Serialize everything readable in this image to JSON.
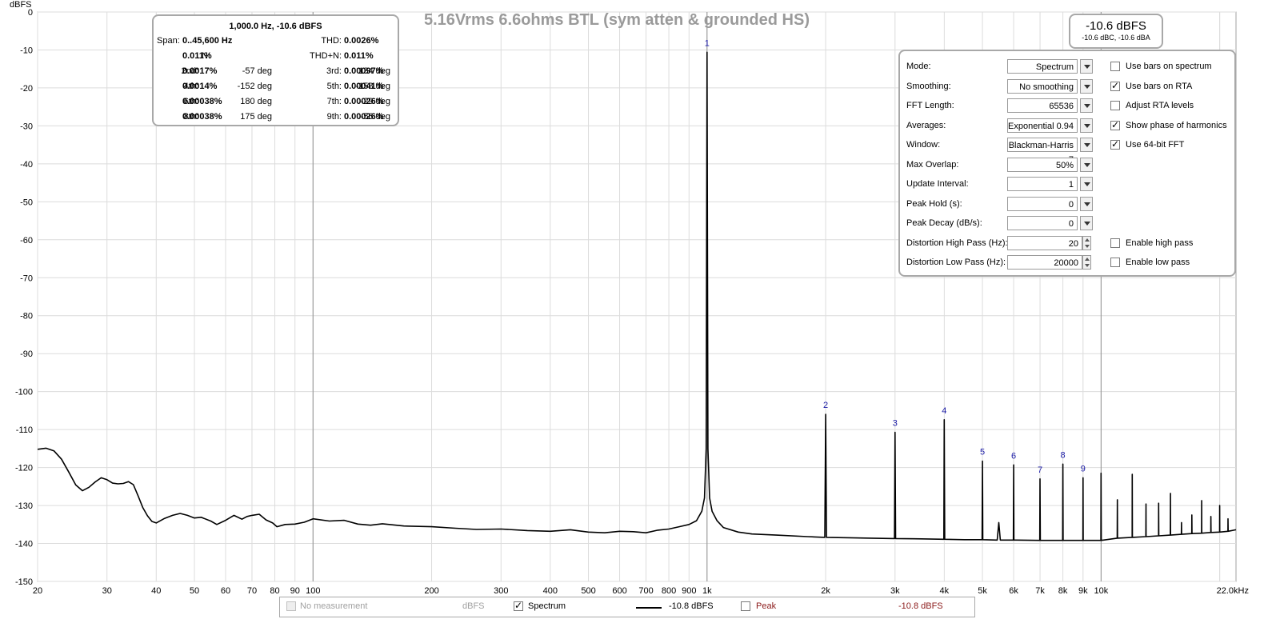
{
  "chart_data": {
    "type": "line",
    "title": "5.16Vrms 6.6ohms BTL (sym atten & grounded HS)",
    "xlabel": "",
    "ylabel": "dBFS",
    "x_scale": "log",
    "xlim": [
      20,
      22000
    ],
    "ylim": [
      -150,
      0
    ],
    "grid": true,
    "y_ticks": [
      0,
      -10,
      -20,
      -30,
      -40,
      -50,
      -60,
      -70,
      -80,
      -90,
      -100,
      -110,
      -120,
      -130,
      -140,
      -150
    ],
    "x_ticks": [
      {
        "v": 20,
        "l": "20"
      },
      {
        "v": 30,
        "l": "30"
      },
      {
        "v": 40,
        "l": "40"
      },
      {
        "v": 50,
        "l": "50"
      },
      {
        "v": 60,
        "l": "60"
      },
      {
        "v": 70,
        "l": "70"
      },
      {
        "v": 80,
        "l": "80"
      },
      {
        "v": 90,
        "l": "90"
      },
      {
        "v": 100,
        "l": "100"
      },
      {
        "v": 200,
        "l": "200"
      },
      {
        "v": 300,
        "l": "300"
      },
      {
        "v": 400,
        "l": "400"
      },
      {
        "v": 500,
        "l": "500"
      },
      {
        "v": 600,
        "l": "600"
      },
      {
        "v": 700,
        "l": "700"
      },
      {
        "v": 800,
        "l": "800"
      },
      {
        "v": 900,
        "l": "900"
      },
      {
        "v": 1000,
        "l": "1k"
      },
      {
        "v": 2000,
        "l": "2k"
      },
      {
        "v": 3000,
        "l": "3k"
      },
      {
        "v": 4000,
        "l": "4k"
      },
      {
        "v": 5000,
        "l": "5k"
      },
      {
        "v": 6000,
        "l": "6k"
      },
      {
        "v": 7000,
        "l": "7k"
      },
      {
        "v": 8000,
        "l": "8k"
      },
      {
        "v": 9000,
        "l": "9k"
      },
      {
        "v": 10000,
        "l": "10k"
      },
      {
        "v": 22000,
        "l": "22.0kHz"
      }
    ],
    "series": [
      {
        "color": "#000000",
        "points": [
          [
            20,
            -115.2
          ],
          [
            21,
            -114.9
          ],
          [
            22,
            -115.6
          ],
          [
            23,
            -117.8
          ],
          [
            24,
            -121.2
          ],
          [
            25,
            -124.6
          ],
          [
            26,
            -126.1
          ],
          [
            27,
            -125.2
          ],
          [
            28,
            -123.8
          ],
          [
            29,
            -122.7
          ],
          [
            30,
            -123.2
          ],
          [
            31,
            -124.1
          ],
          [
            32,
            -124.3
          ],
          [
            33,
            -124.2
          ],
          [
            34,
            -123.7
          ],
          [
            35,
            -124.5
          ],
          [
            36,
            -127.5
          ],
          [
            37,
            -130.6
          ],
          [
            38,
            -132.7
          ],
          [
            39,
            -134.2
          ],
          [
            40,
            -134.6
          ],
          [
            42,
            -133.4
          ],
          [
            44,
            -132.6
          ],
          [
            46,
            -132.1
          ],
          [
            48,
            -132.6
          ],
          [
            50,
            -133.3
          ],
          [
            52,
            -133.1
          ],
          [
            55,
            -134.1
          ],
          [
            57,
            -135.0
          ],
          [
            60,
            -133.9
          ],
          [
            63,
            -132.6
          ],
          [
            66,
            -133.6
          ],
          [
            68,
            -132.9
          ],
          [
            70,
            -132.6
          ],
          [
            73,
            -132.3
          ],
          [
            76,
            -133.8
          ],
          [
            79,
            -134.6
          ],
          [
            81,
            -135.6
          ],
          [
            85,
            -135.0
          ],
          [
            90,
            -134.9
          ],
          [
            95,
            -134.4
          ],
          [
            100,
            -133.5
          ],
          [
            110,
            -134.1
          ],
          [
            120,
            -133.9
          ],
          [
            130,
            -134.9
          ],
          [
            140,
            -135.2
          ],
          [
            150,
            -134.8
          ],
          [
            170,
            -135.4
          ],
          [
            200,
            -135.6
          ],
          [
            230,
            -136.0
          ],
          [
            260,
            -136.3
          ],
          [
            300,
            -136.2
          ],
          [
            350,
            -136.6
          ],
          [
            400,
            -136.8
          ],
          [
            450,
            -136.4
          ],
          [
            500,
            -137.0
          ],
          [
            550,
            -137.2
          ],
          [
            600,
            -136.8
          ],
          [
            650,
            -136.9
          ],
          [
            700,
            -137.2
          ],
          [
            750,
            -136.5
          ],
          [
            800,
            -136.2
          ],
          [
            850,
            -135.6
          ],
          [
            900,
            -135.0
          ],
          [
            940,
            -134.0
          ],
          [
            970,
            -131.5
          ],
          [
            985,
            -128.0
          ],
          [
            995,
            -115.0
          ],
          [
            1000,
            -10.6
          ],
          [
            1005,
            -115.0
          ],
          [
            1015,
            -128.0
          ],
          [
            1030,
            -131.5
          ],
          [
            1060,
            -134.0
          ],
          [
            1100,
            -135.8
          ],
          [
            1200,
            -137.0
          ],
          [
            1300,
            -137.5
          ],
          [
            1500,
            -137.8
          ],
          [
            1800,
            -138.2
          ],
          [
            1990,
            -138.4
          ],
          [
            2000,
            -106.0
          ],
          [
            2010,
            -138.4
          ],
          [
            2300,
            -138.5
          ],
          [
            2600,
            -138.6
          ],
          [
            2990,
            -138.7
          ],
          [
            3000,
            -110.7
          ],
          [
            3010,
            -138.7
          ],
          [
            3500,
            -138.8
          ],
          [
            3990,
            -138.9
          ],
          [
            4000,
            -107.4
          ],
          [
            4010,
            -138.9
          ],
          [
            4500,
            -139.0
          ],
          [
            4990,
            -139.0
          ],
          [
            5000,
            -118.3
          ],
          [
            5010,
            -139.0
          ],
          [
            5450,
            -139.1
          ],
          [
            5500,
            -134.5
          ],
          [
            5550,
            -139.1
          ],
          [
            5990,
            -139.1
          ],
          [
            6000,
            -119.3
          ],
          [
            6010,
            -139.1
          ],
          [
            6990,
            -139.2
          ],
          [
            7000,
            -123.0
          ],
          [
            7010,
            -139.2
          ],
          [
            7990,
            -139.2
          ],
          [
            8000,
            -119.1
          ],
          [
            8010,
            -139.2
          ],
          [
            8990,
            -139.2
          ],
          [
            9000,
            -122.7
          ],
          [
            9010,
            -139.2
          ],
          [
            9990,
            -139.2
          ],
          [
            10000,
            -121.5
          ],
          [
            10010,
            -139.2
          ],
          [
            10990,
            -138.6
          ],
          [
            11000,
            -128.5
          ],
          [
            11010,
            -138.6
          ],
          [
            11990,
            -138.4
          ],
          [
            12000,
            -121.8
          ],
          [
            12010,
            -138.4
          ],
          [
            12990,
            -138.2
          ],
          [
            13000,
            -129.6
          ],
          [
            13010,
            -138.2
          ],
          [
            13990,
            -138.0
          ],
          [
            14000,
            -129.4
          ],
          [
            14010,
            -138.0
          ],
          [
            14990,
            -137.8
          ],
          [
            15000,
            -126.8
          ],
          [
            15010,
            -137.8
          ],
          [
            15990,
            -137.6
          ],
          [
            16000,
            -134.5
          ],
          [
            16010,
            -137.6
          ],
          [
            16990,
            -137.4
          ],
          [
            17000,
            -132.5
          ],
          [
            17010,
            -137.4
          ],
          [
            17990,
            -137.3
          ],
          [
            18000,
            -128.7
          ],
          [
            18010,
            -137.3
          ],
          [
            18990,
            -137.1
          ],
          [
            19000,
            -132.9
          ],
          [
            19010,
            -137.1
          ],
          [
            19990,
            -137.0
          ],
          [
            20000,
            -130.0
          ],
          [
            20010,
            -137.0
          ],
          [
            20990,
            -136.8
          ],
          [
            21000,
            -133.5
          ],
          [
            21010,
            -136.8
          ],
          [
            22000,
            -136.4
          ]
        ]
      }
    ],
    "peak_labels": [
      {
        "label": "1",
        "x": 1000,
        "y": -10.6
      },
      {
        "label": "2",
        "x": 2000,
        "y": -106.0
      },
      {
        "label": "3",
        "x": 3000,
        "y": -110.7
      },
      {
        "label": "4",
        "x": 4000,
        "y": -107.4
      },
      {
        "label": "5",
        "x": 5000,
        "y": -118.3
      },
      {
        "label": "6",
        "x": 6000,
        "y": -119.3
      },
      {
        "label": "7",
        "x": 7000,
        "y": -123.0
      },
      {
        "label": "8",
        "x": 8000,
        "y": -119.1
      },
      {
        "label": "9",
        "x": 9000,
        "y": -122.7
      }
    ],
    "cursor_x": 10000
  },
  "harmonics": {
    "header": "1,000.0 Hz, -10.6 dBFS",
    "span_label": "Span:",
    "span": "0..45,600 Hz",
    "thd_label": "THD:",
    "thd": "0.0026%",
    "n_label": "N:",
    "n": "0.011%",
    "thdn_label": "THD+N:",
    "thdn": "0.011%",
    "rows": [
      {
        "l1": "2nd:",
        "v1": "0.0017%",
        "p1": "-57 deg",
        "l2": "3rd:",
        "v2": "0.00097%",
        "p2": "134 deg"
      },
      {
        "l1": "4th:",
        "v1": "0.0014%",
        "p1": "-152 deg",
        "l2": "5th:",
        "v2": "0.00041%",
        "p2": "-158 deg"
      },
      {
        "l1": "6th:",
        "v1": "0.00038%",
        "p1": "180 deg",
        "l2": "7th:",
        "v2": "0.00026%",
        "p2": "-29 deg"
      },
      {
        "l1": "8th:",
        "v1": "0.00038%",
        "p1": "175 deg",
        "l2": "9th:",
        "v2": "0.00026%",
        "p2": "-56 deg"
      }
    ]
  },
  "level": {
    "main": "-10.6 dBFS",
    "sub": "-10.6 dBC, -10.6 dBA"
  },
  "controls": {
    "rows": [
      {
        "label": "Mode:",
        "value": "Spectrum",
        "kind": "select"
      },
      {
        "label": "Smoothing:",
        "value": "No  smoothing",
        "kind": "select"
      },
      {
        "label": "FFT Length:",
        "value": "65536",
        "kind": "select"
      },
      {
        "label": "Averages:",
        "value": "Exponential 0.94",
        "kind": "select"
      },
      {
        "label": "Window:",
        "value": "Blackman-Harris 7",
        "kind": "select"
      },
      {
        "label": "Max Overlap:",
        "value": "50%",
        "kind": "select"
      },
      {
        "label": "Update Interval:",
        "value": "1",
        "kind": "select"
      },
      {
        "label": "Peak Hold (s):",
        "value": "0",
        "kind": "select"
      },
      {
        "label": "Peak Decay (dB/s):",
        "value": "0",
        "kind": "select"
      },
      {
        "label": "Distortion High Pass (Hz):",
        "value": "20",
        "kind": "spin"
      },
      {
        "label": "Distortion Low Pass (Hz):",
        "value": "20000",
        "kind": "spin"
      }
    ],
    "checks": [
      {
        "label": "Use bars on spectrum",
        "checked": false,
        "row": 0
      },
      {
        "label": "Use bars on RTA",
        "checked": true,
        "row": 1
      },
      {
        "label": "Adjust RTA levels",
        "checked": false,
        "row": 2
      },
      {
        "label": "Show phase of harmonics",
        "checked": true,
        "row": 3
      },
      {
        "label": "Use 64-bit FFT",
        "checked": true,
        "row": 4
      },
      {
        "label": "Enable high pass",
        "checked": false,
        "row": 9
      },
      {
        "label": "Enable low pass",
        "checked": false,
        "row": 10
      }
    ]
  },
  "legend": {
    "no_measurement": "No measurement",
    "unit": "dBFS",
    "spectrum": "Spectrum",
    "spectrum_value": "-10.8 dBFS",
    "peak": "Peak",
    "peak_value": "-10.8 dBFS",
    "peak_color": "#8b1a1a"
  }
}
